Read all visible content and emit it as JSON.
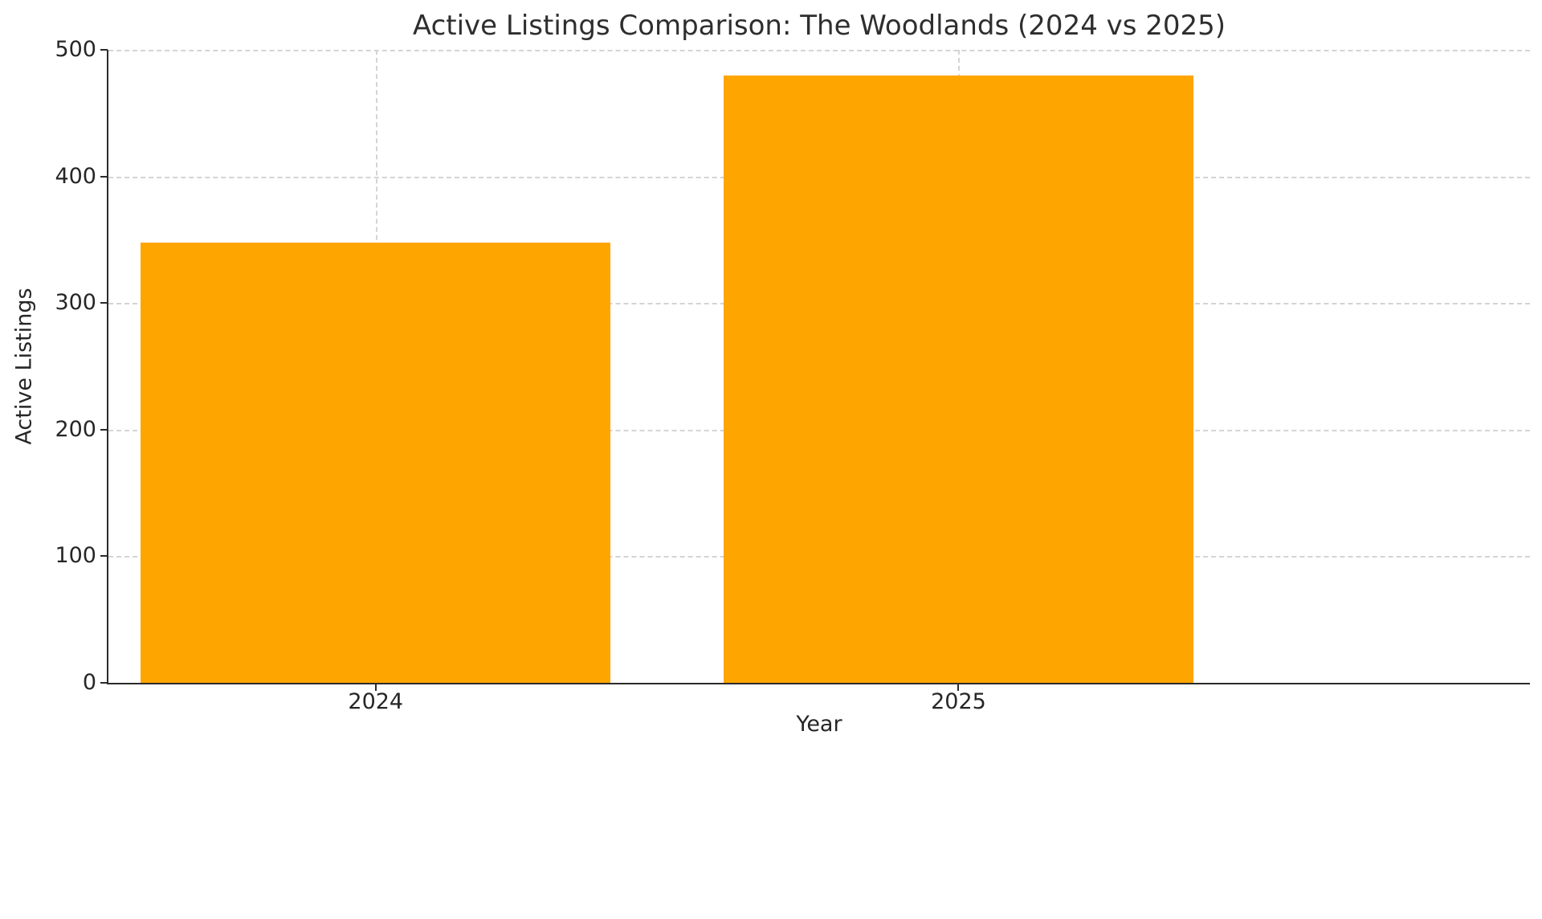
{
  "chart_data": {
    "type": "bar",
    "categories": [
      "2024",
      "2025"
    ],
    "values": [
      348,
      480
    ],
    "title": "Active Listings Comparison: The Woodlands (2024 vs 2025)",
    "xlabel": "Year",
    "ylabel": "Active Listings",
    "ylim": [
      0,
      500
    ],
    "yticks": [
      0,
      100,
      200,
      300,
      400,
      500
    ],
    "bar_color": "#FFA500",
    "grid": "dashed-both-axes",
    "legend": "none",
    "background": "#ffffff"
  }
}
